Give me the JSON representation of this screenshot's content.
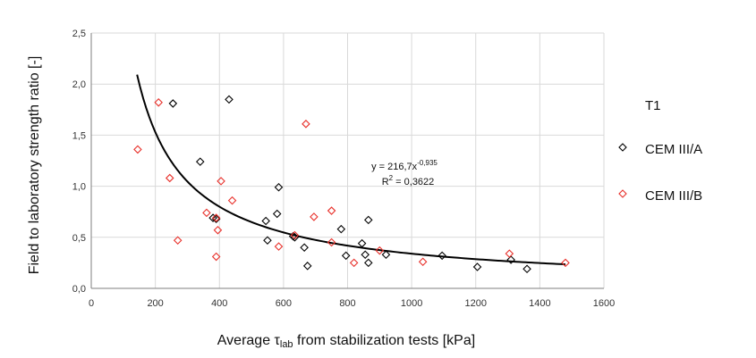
{
  "chart_data": {
    "type": "scatter",
    "title": "",
    "xlabel_prefix": "Average ",
    "xlabel_symbol": "τ",
    "xlabel_sub": "lab",
    "xlabel_suffix": " from stabilization tests [kPa]",
    "ylabel": "Field to laboratory strength ratio [-]",
    "xlim": [
      0,
      1600
    ],
    "ylim": [
      0,
      2.5
    ],
    "xticks": [
      0,
      200,
      400,
      600,
      800,
      1000,
      1200,
      1400,
      1600
    ],
    "xtick_labels": [
      "0",
      "200",
      "400",
      "600",
      "800",
      "1000",
      "1200",
      "1400",
      "1600"
    ],
    "yticks": [
      0,
      0.5,
      1.0,
      1.5,
      2.0,
      2.5
    ],
    "ytick_labels": [
      "0,0",
      "0,5",
      "1,0",
      "1,5",
      "2,0",
      "2,5"
    ],
    "grid": true,
    "legend_title": "T1",
    "series": [
      {
        "name": "CEM III/A",
        "color": "#000000",
        "marker": "diamond",
        "points": [
          [
            255,
            1.81
          ],
          [
            430,
            1.85
          ],
          [
            340,
            1.24
          ],
          [
            585,
            0.99
          ],
          [
            380,
            0.69
          ],
          [
            390,
            0.68
          ],
          [
            545,
            0.66
          ],
          [
            580,
            0.73
          ],
          [
            550,
            0.47
          ],
          [
            630,
            0.51
          ],
          [
            635,
            0.5
          ],
          [
            665,
            0.4
          ],
          [
            675,
            0.22
          ],
          [
            780,
            0.58
          ],
          [
            795,
            0.32
          ],
          [
            845,
            0.44
          ],
          [
            855,
            0.33
          ],
          [
            865,
            0.67
          ],
          [
            865,
            0.25
          ],
          [
            920,
            0.33
          ],
          [
            1095,
            0.32
          ],
          [
            1205,
            0.21
          ],
          [
            1310,
            0.28
          ],
          [
            1360,
            0.19
          ]
        ]
      },
      {
        "name": "CEM III/B",
        "color": "#e8302a",
        "marker": "diamond",
        "points": [
          [
            145,
            1.36
          ],
          [
            210,
            1.82
          ],
          [
            245,
            1.08
          ],
          [
            270,
            0.47
          ],
          [
            360,
            0.74
          ],
          [
            390,
            0.31
          ],
          [
            390,
            0.69
          ],
          [
            395,
            0.57
          ],
          [
            405,
            1.05
          ],
          [
            440,
            0.86
          ],
          [
            585,
            0.41
          ],
          [
            635,
            0.52
          ],
          [
            670,
            1.61
          ],
          [
            695,
            0.7
          ],
          [
            750,
            0.76
          ],
          [
            750,
            0.45
          ],
          [
            820,
            0.25
          ],
          [
            900,
            0.37
          ],
          [
            1035,
            0.26
          ],
          [
            1305,
            0.34
          ],
          [
            1480,
            0.25
          ]
        ]
      }
    ],
    "trendline": {
      "a": 216.7,
      "b": -0.935,
      "x_range": [
        143,
        1480
      ],
      "equation_prefix": "y = 216,7x",
      "equation_exponent": "-0,935",
      "r2_prefix": "R",
      "r2_exponent": "2",
      "r2_suffix": " = 0,3622"
    }
  },
  "colors": {
    "grid": "#d9d9d9",
    "axis": "#7f7f7f",
    "trendline": "#000000"
  }
}
